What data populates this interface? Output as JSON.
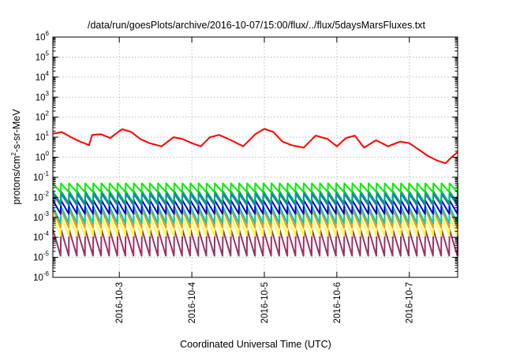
{
  "chart_data": {
    "type": "line",
    "title": "/data/run/goesPlots/archive/2016-10-07/15:00/flux/../flux/5daysMarsFluxes.txt",
    "xlabel": "Coordinated Universal Time (UTC)",
    "ylabel_parts": [
      "protons/cm",
      "2",
      "-s-sr-MeV"
    ],
    "y_scale": "log",
    "ylim": [
      1e-06,
      1000000.0
    ],
    "y_ticks": [
      {
        "base": "10",
        "exp": "-6",
        "value": 1e-06
      },
      {
        "base": "10",
        "exp": "-5",
        "value": 1e-05
      },
      {
        "base": "10",
        "exp": "-4",
        "value": 0.0001
      },
      {
        "base": "10",
        "exp": "-3",
        "value": 0.001
      },
      {
        "base": "10",
        "exp": "-2",
        "value": 0.01
      },
      {
        "base": "10",
        "exp": "-1",
        "value": 0.1
      },
      {
        "base": "10",
        "exp": "0",
        "value": 1
      },
      {
        "base": "10",
        "exp": "1",
        "value": 10
      },
      {
        "base": "10",
        "exp": "2",
        "value": 100
      },
      {
        "base": "10",
        "exp": "3",
        "value": 1000
      },
      {
        "base": "10",
        "exp": "4",
        "value": 10000
      },
      {
        "base": "10",
        "exp": "5",
        "value": 100000
      },
      {
        "base": "10",
        "exp": "6",
        "value": 1000000
      }
    ],
    "xlim": [
      "2016-10-02 02:00",
      "2016-10-07 16:00"
    ],
    "x_ticks": [
      "2016-10-3",
      "2016-10-4",
      "2016-10-5",
      "2016-10-6",
      "2016-10-7"
    ],
    "x_tick_dates": [
      "2016-10-03",
      "2016-10-04",
      "2016-10-05",
      "2016-10-06",
      "2016-10-07"
    ],
    "grid": true,
    "series": [
      {
        "color": "#ff0000",
        "x": [
          "2016-10-02 02:00",
          "2016-10-02 05:00",
          "2016-10-02 08:00",
          "2016-10-02 11:00",
          "2016-10-02 14:00",
          "2016-10-02 15:00",
          "2016-10-02 18:00",
          "2016-10-02 21:00",
          "2016-10-03 00:00",
          "2016-10-03 01:00",
          "2016-10-03 04:00",
          "2016-10-03 07:00",
          "2016-10-03 10:00",
          "2016-10-03 14:00",
          "2016-10-03 18:00",
          "2016-10-03 21:00",
          "2016-10-04 00:00",
          "2016-10-04 03:00",
          "2016-10-04 06:00",
          "2016-10-04 09:00",
          "2016-10-04 13:00",
          "2016-10-04 17:00",
          "2016-10-04 21:00",
          "2016-10-05 00:00",
          "2016-10-05 03:00",
          "2016-10-05 06:00",
          "2016-10-05 09:00",
          "2016-10-05 13:00",
          "2016-10-05 17:00",
          "2016-10-05 21:00",
          "2016-10-06 00:00",
          "2016-10-06 03:00",
          "2016-10-06 06:00",
          "2016-10-06 09:00",
          "2016-10-06 13:00",
          "2016-10-06 17:00",
          "2016-10-06 21:00",
          "2016-10-07 00:00",
          "2016-10-07 03:00",
          "2016-10-07 06:00",
          "2016-10-07 09:00",
          "2016-10-07 12:00",
          "2016-10-07 14:00",
          "2016-10-07 16:00"
        ],
        "values": [
          15,
          18,
          10,
          6,
          4,
          13,
          14,
          9,
          20,
          25,
          18,
          8,
          5,
          3.5,
          10,
          8,
          5,
          3.5,
          10,
          13,
          7,
          3.5,
          14,
          26,
          18,
          6,
          4,
          3,
          12,
          8,
          3.5,
          9,
          12,
          3,
          7,
          3.5,
          6,
          5,
          2.5,
          1.2,
          0.7,
          0.5,
          1,
          1.8
        ]
      },
      {
        "color": "#00ee00",
        "sawtooth_range": [
          0.018,
          0.05
        ]
      },
      {
        "color": "#00aa66",
        "sawtooth_range": [
          0.005,
          0.02
        ]
      },
      {
        "color": "#1e6fe6",
        "sawtooth_range": [
          0.004,
          0.015
        ]
      },
      {
        "color": "#0000cc",
        "sawtooth_range": [
          0.0015,
          0.007
        ]
      },
      {
        "color": "#00c8c8",
        "sawtooth_range": [
          0.0005,
          0.0035
        ]
      },
      {
        "color": "#ff9900",
        "sawtooth_range": [
          0.0003,
          0.0025
        ]
      },
      {
        "color": "#ffff33",
        "sawtooth_range": [
          0.00012,
          0.0011
        ]
      },
      {
        "color": "#993366",
        "sawtooth_range": [
          1.2e-05,
          0.00025
        ]
      }
    ]
  }
}
